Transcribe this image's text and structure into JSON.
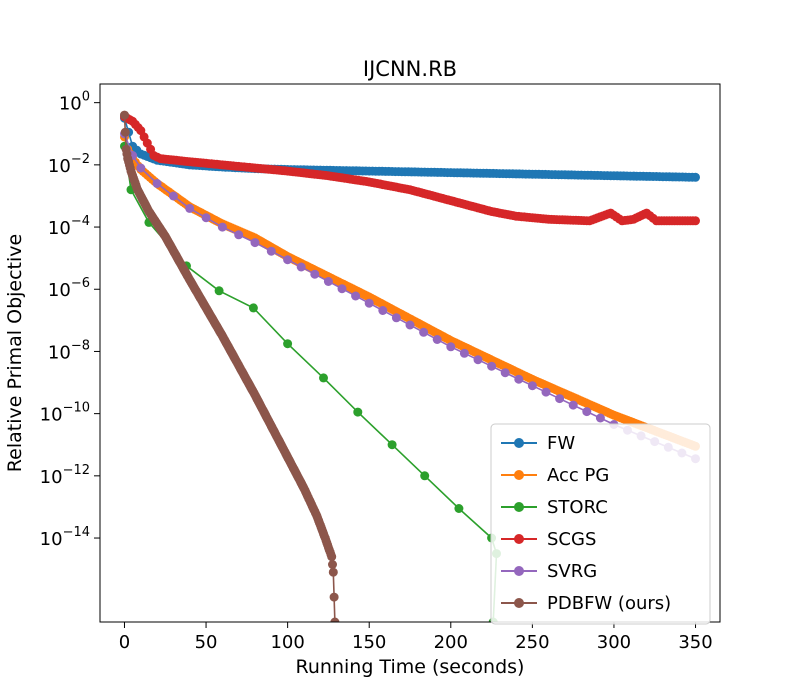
{
  "chart_data": {
    "type": "line",
    "title": "IJCNN.RB",
    "xlabel": "Running Time (seconds)",
    "ylabel": "Relative Primal Objective",
    "xlim": [
      -15,
      365
    ],
    "ylim_log10": [
      -16.7,
      0.6
    ],
    "yscale": "log",
    "x_ticks": [
      0,
      50,
      100,
      150,
      200,
      250,
      300,
      350
    ],
    "x_tick_labels": [
      "0",
      "50",
      "100",
      "150",
      "200",
      "250",
      "300",
      "350"
    ],
    "y_ticks_log10": [
      0,
      -2,
      -4,
      -6,
      -8,
      -10,
      -12,
      -14
    ],
    "y_tick_base": "10",
    "y_tick_exponents": [
      "0",
      "−2",
      "−4",
      "−6",
      "−8",
      "−10",
      "−12",
      "−14"
    ],
    "grid": false,
    "legend_position": "bottom-right",
    "series": [
      {
        "name": "FW",
        "color": "#1f77b4",
        "step": 2,
        "points_log10y": [
          [
            0,
            -0.5
          ],
          [
            5,
            -1.4
          ],
          [
            10,
            -1.65
          ],
          [
            20,
            -1.85
          ],
          [
            40,
            -2.0
          ],
          [
            60,
            -2.07
          ],
          [
            80,
            -2.12
          ],
          [
            100,
            -2.15
          ],
          [
            150,
            -2.2
          ],
          [
            200,
            -2.25
          ],
          [
            250,
            -2.3
          ],
          [
            300,
            -2.35
          ],
          [
            350,
            -2.4
          ]
        ]
      },
      {
        "name": "Acc PG",
        "color": "#ff7f0e",
        "step": 1.4,
        "points_log10y": [
          [
            0,
            -1.1
          ],
          [
            2,
            -1.5
          ],
          [
            5,
            -1.8
          ],
          [
            10,
            -2.15
          ],
          [
            20,
            -2.6
          ],
          [
            40,
            -3.35
          ],
          [
            60,
            -3.9
          ],
          [
            80,
            -4.35
          ],
          [
            100,
            -4.95
          ],
          [
            150,
            -6.25
          ],
          [
            200,
            -7.65
          ],
          [
            250,
            -8.9
          ],
          [
            300,
            -10.05
          ],
          [
            350,
            -11.05
          ]
        ]
      },
      {
        "name": "STORC",
        "color": "#2ca02c",
        "step": 0,
        "points_log10y": [
          [
            0,
            -1.4
          ],
          [
            4,
            -2.8
          ],
          [
            15,
            -3.85
          ],
          [
            38,
            -5.25
          ],
          [
            58,
            -6.05
          ],
          [
            79,
            -6.6
          ],
          [
            100,
            -7.75
          ],
          [
            122,
            -8.85
          ],
          [
            143,
            -9.95
          ],
          [
            164,
            -11.0
          ],
          [
            184,
            -12.0
          ],
          [
            205,
            -13.05
          ],
          [
            225,
            -14.0
          ],
          [
            228,
            -14.5
          ],
          [
            226,
            -16.7
          ]
        ]
      },
      {
        "name": "SCGS",
        "color": "#d62728",
        "step": 1.6,
        "points_log10y": [
          [
            0,
            -0.45
          ],
          [
            5,
            -0.6
          ],
          [
            10,
            -0.9
          ],
          [
            14,
            -1.3
          ],
          [
            18,
            -1.7
          ],
          [
            22,
            -1.8
          ],
          [
            40,
            -1.9
          ],
          [
            60,
            -2.0
          ],
          [
            80,
            -2.1
          ],
          [
            100,
            -2.2
          ],
          [
            125,
            -2.35
          ],
          [
            150,
            -2.55
          ],
          [
            175,
            -2.8
          ],
          [
            200,
            -3.15
          ],
          [
            225,
            -3.5
          ],
          [
            240,
            -3.65
          ],
          [
            260,
            -3.75
          ],
          [
            285,
            -3.8
          ],
          [
            298,
            -3.55
          ],
          [
            305,
            -3.8
          ],
          [
            312,
            -3.75
          ],
          [
            320,
            -3.55
          ],
          [
            326,
            -3.8
          ],
          [
            350,
            -3.8
          ]
        ]
      },
      {
        "name": "SVRG",
        "color": "#9467bd",
        "step": 8,
        "points_log10y": [
          [
            0,
            -1.0
          ],
          [
            5,
            -1.7
          ],
          [
            10,
            -2.1
          ],
          [
            20,
            -2.6
          ],
          [
            40,
            -3.4
          ],
          [
            60,
            -4.0
          ],
          [
            80,
            -4.5
          ],
          [
            100,
            -5.05
          ],
          [
            150,
            -6.45
          ],
          [
            200,
            -7.85
          ],
          [
            250,
            -9.1
          ],
          [
            300,
            -10.35
          ],
          [
            350,
            -11.45
          ]
        ]
      },
      {
        "name": "PDBFW (ours)",
        "color": "#8c564b",
        "step": 0.5,
        "points_log10y": [
          [
            0,
            -0.4
          ],
          [
            1,
            -1.5
          ],
          [
            2,
            -1.8
          ],
          [
            4,
            -2.2
          ],
          [
            8,
            -2.8
          ],
          [
            15,
            -3.5
          ],
          [
            25,
            -4.3
          ],
          [
            40,
            -5.7
          ],
          [
            60,
            -7.5
          ],
          [
            80,
            -9.4
          ],
          [
            100,
            -11.4
          ],
          [
            110,
            -12.4
          ],
          [
            118,
            -13.3
          ],
          [
            123,
            -14.0
          ],
          [
            127,
            -14.6
          ],
          [
            128,
            -15.1
          ],
          [
            129,
            -16.7
          ]
        ]
      }
    ]
  }
}
